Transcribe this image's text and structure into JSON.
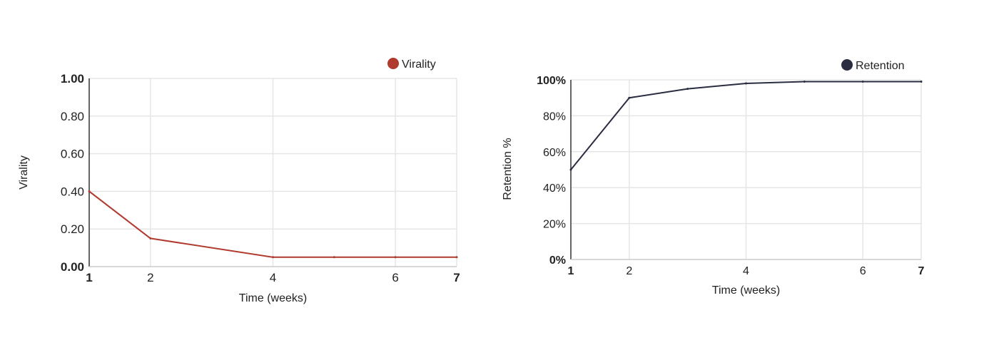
{
  "chart_data": [
    {
      "type": "line",
      "title": "",
      "xlabel": "Time (weeks)",
      "ylabel": "Virality",
      "x": [
        1,
        2,
        4,
        5,
        6,
        7
      ],
      "xticks": [
        1,
        2,
        4,
        6,
        7
      ],
      "xtick_labels": [
        "1",
        "2",
        "4",
        "6",
        "7"
      ],
      "xlim": [
        1,
        7
      ],
      "ylim": [
        0,
        1
      ],
      "yticks": [
        0,
        0.2,
        0.4,
        0.6,
        0.8,
        1.0
      ],
      "ytick_labels": [
        "0.00",
        "0.20",
        "0.40",
        "0.60",
        "0.80",
        "1.00"
      ],
      "grid": true,
      "legend_position": "top-right",
      "series": [
        {
          "name": "Virality",
          "color": "#b03a2e",
          "values": [
            0.4,
            0.15,
            0.05,
            0.05,
            0.05,
            0.05
          ]
        }
      ]
    },
    {
      "type": "line",
      "title": "",
      "xlabel": "Time (weeks)",
      "ylabel": "Retention %",
      "x": [
        1,
        2,
        3,
        4,
        5,
        6,
        7
      ],
      "xticks": [
        1,
        2,
        4,
        6,
        7
      ],
      "xtick_labels": [
        "1",
        "2",
        "4",
        "6",
        "7"
      ],
      "xlim": [
        1,
        7
      ],
      "ylim": [
        0,
        100
      ],
      "yticks": [
        0,
        20,
        40,
        60,
        80,
        100
      ],
      "ytick_labels": [
        "0%",
        "20%",
        "40%",
        "60%",
        "80%",
        "100%"
      ],
      "grid": true,
      "legend_position": "top-right",
      "series": [
        {
          "name": "Retention",
          "color": "#2a2c40",
          "values": [
            50,
            90,
            95,
            98,
            99,
            99,
            99
          ]
        }
      ]
    }
  ]
}
